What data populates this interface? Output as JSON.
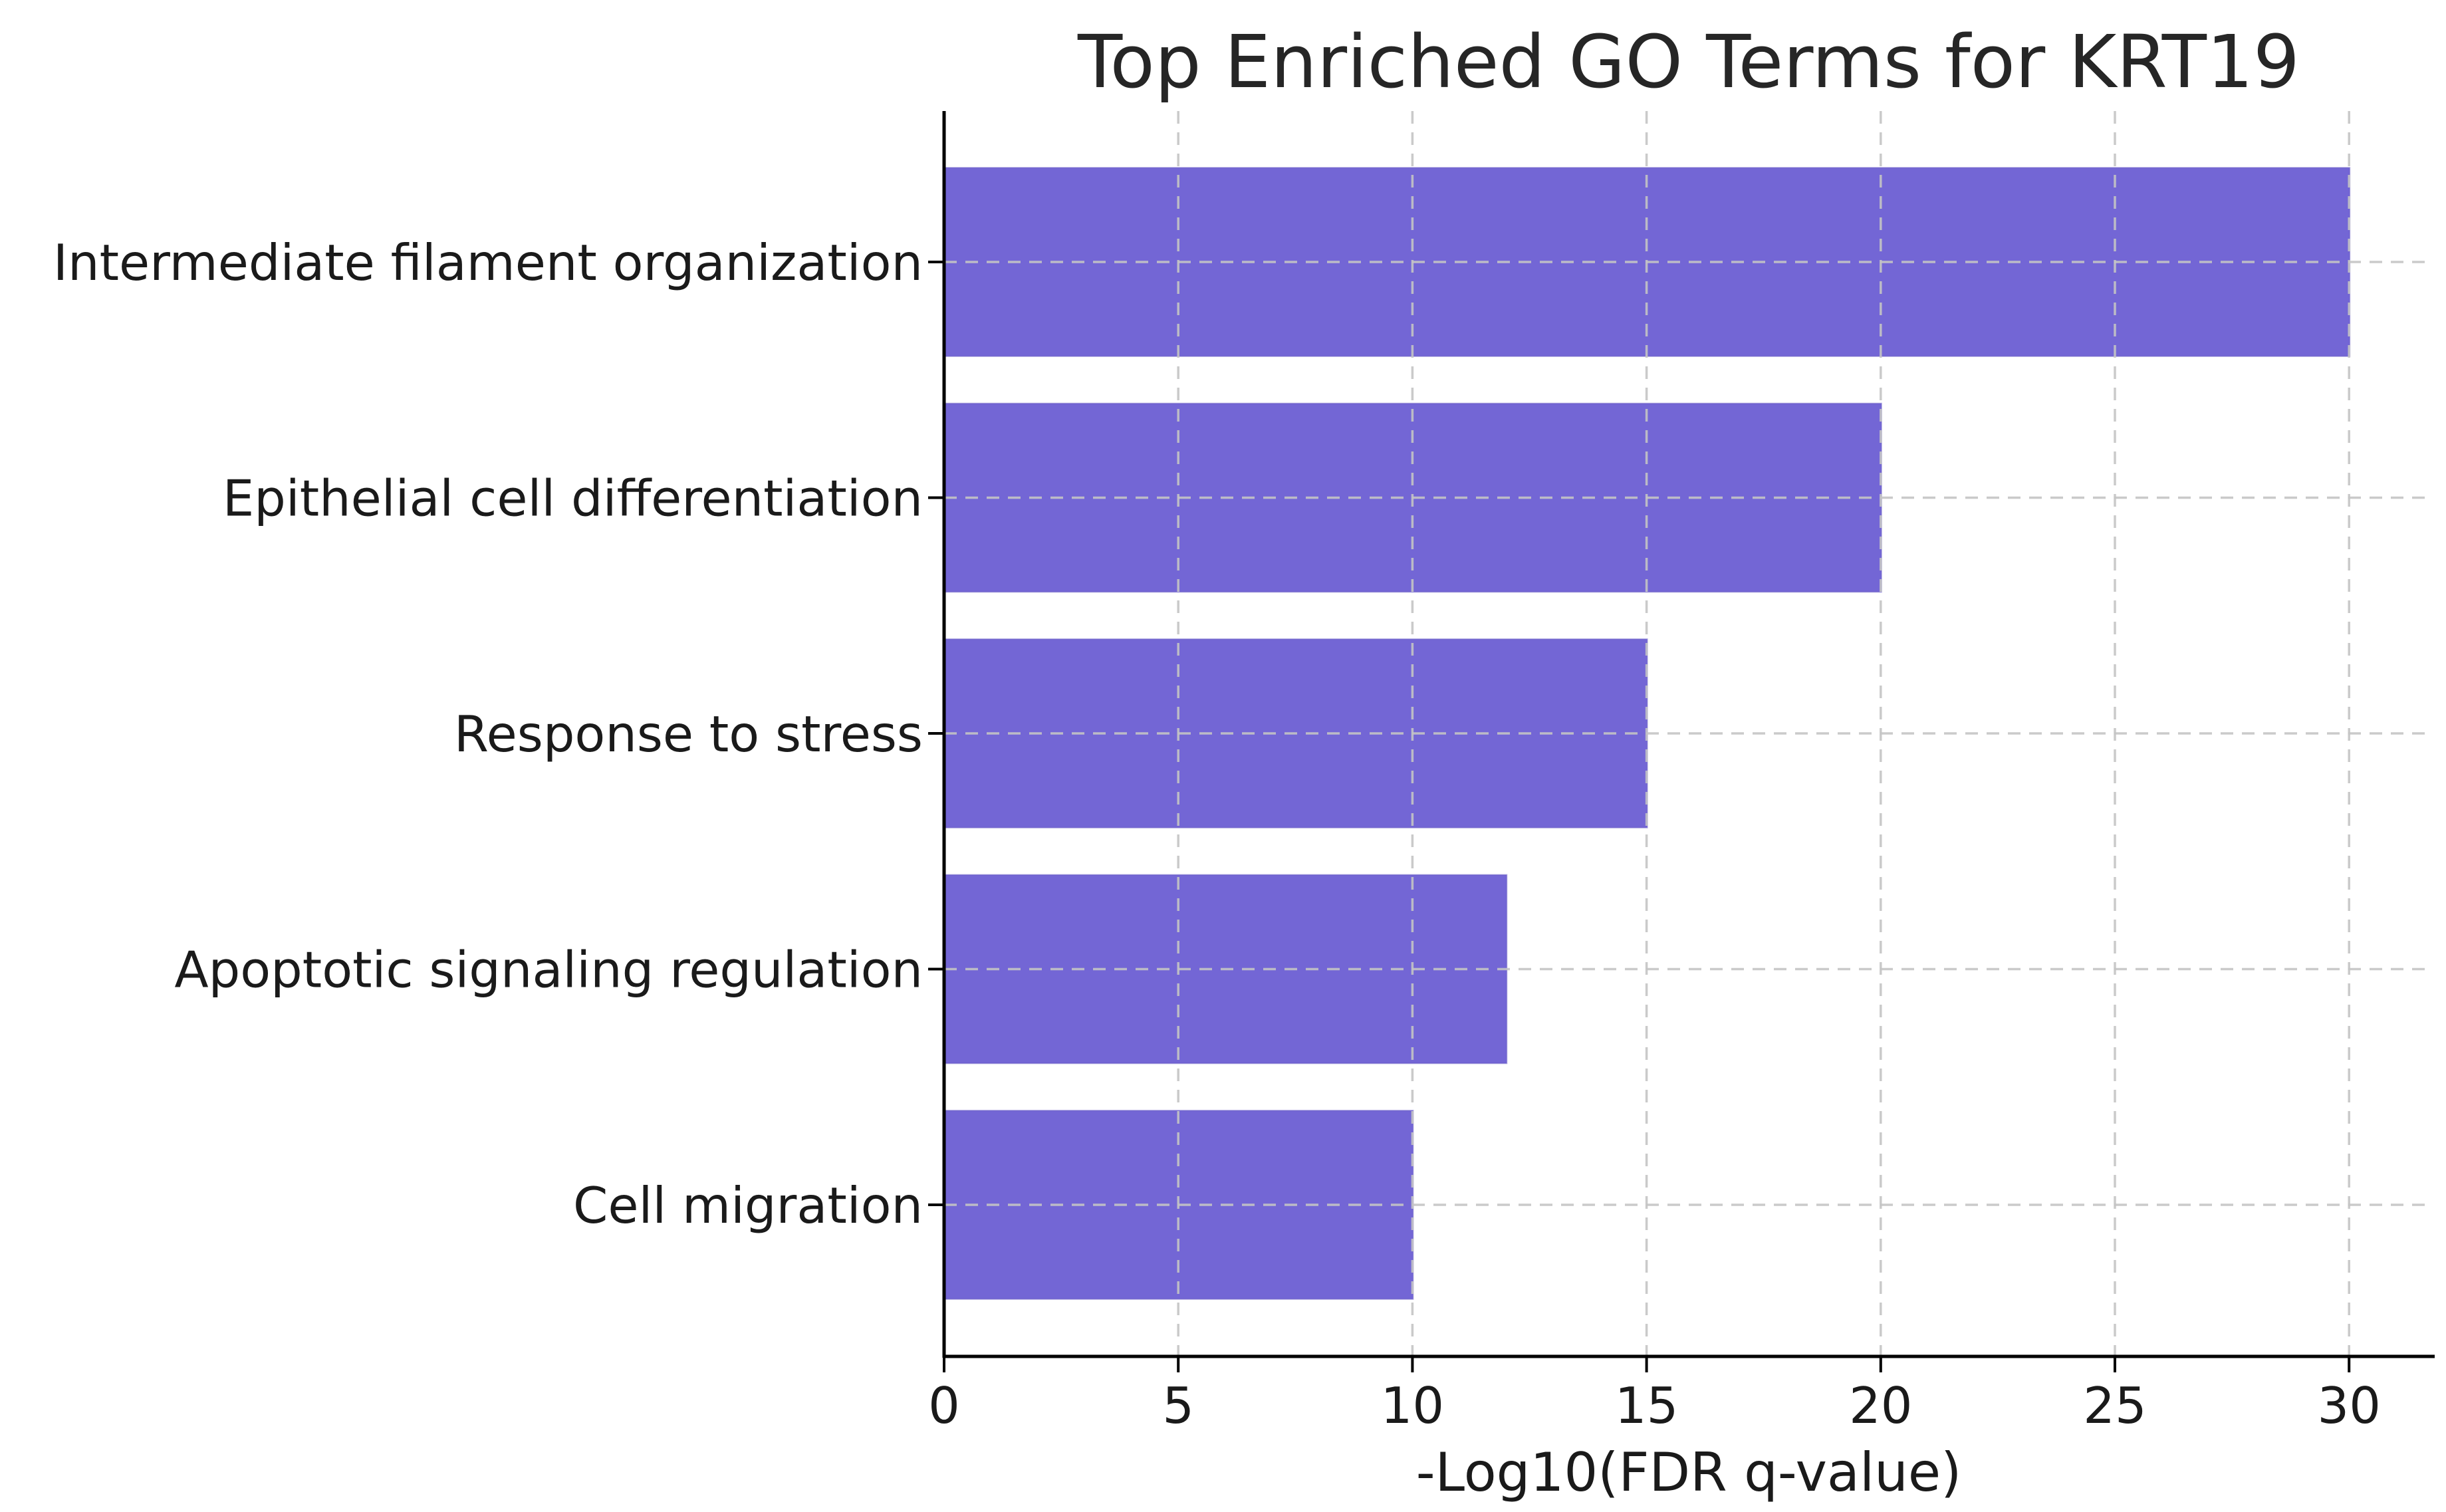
{
  "chart_data": {
    "type": "bar",
    "orientation": "horizontal",
    "title": "Top Enriched GO Terms for KRT19",
    "xlabel": "-Log10(FDR q-value)",
    "ylabel": "",
    "categories": [
      "Intermediate filament organization",
      "Epithelial cell differentiation",
      "Response to stress",
      "Apoptotic signaling regulation",
      "Cell migration"
    ],
    "values": [
      30,
      20,
      15,
      12,
      10
    ],
    "x_ticks": [
      0,
      5,
      10,
      15,
      20,
      25,
      30
    ],
    "xlim": [
      0,
      31.8
    ],
    "grid": "dashed, both axes, drawn above bars",
    "legend": "none",
    "bar_color": "#7366D5",
    "bar_edge_color": "#6254C4",
    "grid_color": "#C4C4C4",
    "spine_color": "#000000",
    "text_color": "#1a1a1a"
  }
}
